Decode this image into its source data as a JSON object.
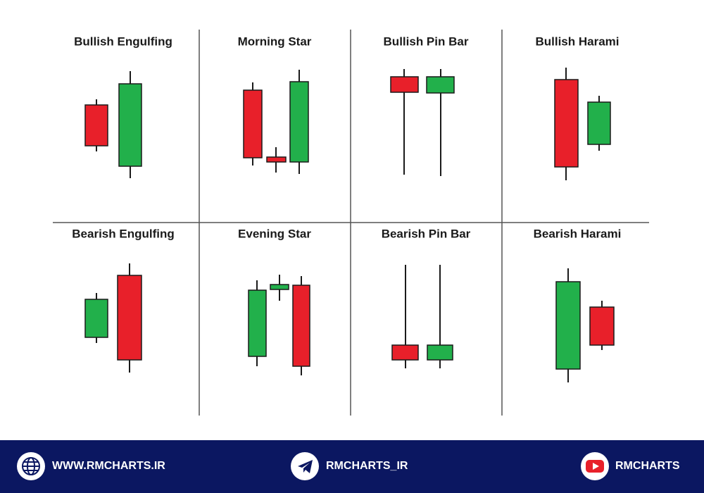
{
  "panels": [
    {
      "title": "Bullish Engulfing"
    },
    {
      "title": "Morning Star"
    },
    {
      "title": "Bullish Pin Bar"
    },
    {
      "title": "Bullish Harami"
    },
    {
      "title": "Bearish Engulfing"
    },
    {
      "title": "Evening Star"
    },
    {
      "title": "Bearish Pin Bar"
    },
    {
      "title": "Bearish Harami"
    }
  ],
  "footer": {
    "website": "WWW.RMCHARTS.IR",
    "telegram": "RMCHARTS_IR",
    "youtube": "RMCHARTS"
  }
}
